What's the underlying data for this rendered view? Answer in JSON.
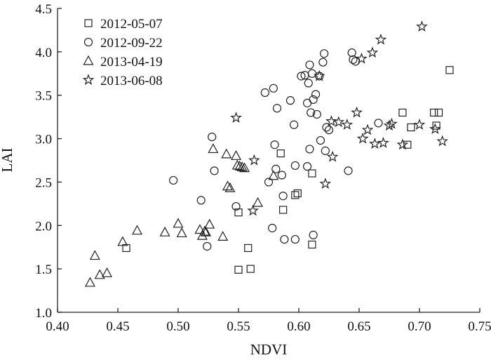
{
  "chart_data": {
    "type": "scatter",
    "xlabel": "NDVI",
    "ylabel": "LAI",
    "xlim": [
      0.4,
      0.75
    ],
    "ylim": [
      1.0,
      4.5
    ],
    "xticks": [
      "0.40",
      "0.45",
      "0.50",
      "0.55",
      "0.60",
      "0.65",
      "0.70",
      "0.75"
    ],
    "yticks": [
      "1.0",
      "1.5",
      "2.0",
      "2.5",
      "3.0",
      "3.5",
      "4.0",
      "4.5"
    ],
    "legend_position": "top-left",
    "grid": false,
    "series": [
      {
        "name": "2012-05-07",
        "marker": "square",
        "points": [
          [
            0.457,
            1.74
          ],
          [
            0.55,
            2.15
          ],
          [
            0.55,
            1.49
          ],
          [
            0.558,
            1.74
          ],
          [
            0.56,
            1.5
          ],
          [
            0.585,
            2.83
          ],
          [
            0.587,
            2.18
          ],
          [
            0.597,
            2.35
          ],
          [
            0.599,
            2.37
          ],
          [
            0.611,
            2.6
          ],
          [
            0.611,
            1.78
          ],
          [
            0.686,
            3.3
          ],
          [
            0.69,
            2.93
          ],
          [
            0.693,
            3.13
          ],
          [
            0.712,
            3.3
          ],
          [
            0.714,
            3.15
          ],
          [
            0.716,
            3.3
          ],
          [
            0.725,
            3.79
          ]
        ]
      },
      {
        "name": "2012-09-22",
        "marker": "circle",
        "points": [
          [
            0.496,
            2.52
          ],
          [
            0.519,
            2.29
          ],
          [
            0.524,
            1.76
          ],
          [
            0.528,
            3.02
          ],
          [
            0.53,
            2.63
          ],
          [
            0.548,
            2.22
          ],
          [
            0.572,
            3.53
          ],
          [
            0.575,
            2.5
          ],
          [
            0.578,
            1.97
          ],
          [
            0.579,
            3.58
          ],
          [
            0.58,
            2.93
          ],
          [
            0.581,
            2.65
          ],
          [
            0.582,
            3.35
          ],
          [
            0.586,
            2.58
          ],
          [
            0.587,
            2.34
          ],
          [
            0.588,
            1.84
          ],
          [
            0.593,
            3.44
          ],
          [
            0.596,
            3.16
          ],
          [
            0.597,
            2.69
          ],
          [
            0.597,
            1.84
          ],
          [
            0.602,
            3.72
          ],
          [
            0.605,
            3.73
          ],
          [
            0.607,
            2.68
          ],
          [
            0.607,
            3.41
          ],
          [
            0.608,
            3.64
          ],
          [
            0.609,
            2.88
          ],
          [
            0.609,
            3.85
          ],
          [
            0.61,
            3.3
          ],
          [
            0.611,
            3.75
          ],
          [
            0.612,
            3.45
          ],
          [
            0.612,
            1.89
          ],
          [
            0.614,
            3.51
          ],
          [
            0.615,
            3.28
          ],
          [
            0.617,
            3.72
          ],
          [
            0.618,
            2.98
          ],
          [
            0.62,
            3.88
          ],
          [
            0.621,
            3.98
          ],
          [
            0.622,
            2.86
          ],
          [
            0.623,
            3.13
          ],
          [
            0.625,
            3.1
          ],
          [
            0.641,
            2.63
          ],
          [
            0.644,
            3.99
          ],
          [
            0.645,
            3.91
          ],
          [
            0.647,
            3.89
          ],
          [
            0.666,
            3.18
          ]
        ]
      },
      {
        "name": "2013-04-19",
        "marker": "triangle",
        "points": [
          [
            0.427,
            1.34
          ],
          [
            0.431,
            1.65
          ],
          [
            0.435,
            1.43
          ],
          [
            0.441,
            1.45
          ],
          [
            0.454,
            1.81
          ],
          [
            0.466,
            1.94
          ],
          [
            0.489,
            1.92
          ],
          [
            0.5,
            2.02
          ],
          [
            0.503,
            1.91
          ],
          [
            0.518,
            1.95
          ],
          [
            0.52,
            1.88
          ],
          [
            0.522,
            1.93
          ],
          [
            0.523,
            1.92
          ],
          [
            0.526,
            2.01
          ],
          [
            0.529,
            2.88
          ],
          [
            0.537,
            1.87
          ],
          [
            0.54,
            2.82
          ],
          [
            0.541,
            2.45
          ],
          [
            0.543,
            2.43
          ],
          [
            0.548,
            2.8
          ],
          [
            0.549,
            2.69
          ],
          [
            0.551,
            2.68
          ],
          [
            0.553,
            2.67
          ],
          [
            0.555,
            2.66
          ],
          [
            0.566,
            2.26
          ],
          [
            0.579,
            2.57
          ]
        ]
      },
      {
        "name": "2013-06-08",
        "marker": "star",
        "points": [
          [
            0.548,
            3.24
          ],
          [
            0.562,
            2.17
          ],
          [
            0.563,
            2.75
          ],
          [
            0.617,
            3.72
          ],
          [
            0.622,
            2.48
          ],
          [
            0.627,
            3.2
          ],
          [
            0.628,
            2.79
          ],
          [
            0.633,
            3.19
          ],
          [
            0.64,
            3.16
          ],
          [
            0.648,
            3.3
          ],
          [
            0.652,
            3.92
          ],
          [
            0.653,
            3.0
          ],
          [
            0.657,
            3.1
          ],
          [
            0.661,
            3.99
          ],
          [
            0.663,
            2.94
          ],
          [
            0.668,
            4.14
          ],
          [
            0.67,
            2.95
          ],
          [
            0.675,
            3.15
          ],
          [
            0.677,
            3.17
          ],
          [
            0.686,
            2.93
          ],
          [
            0.7,
            3.16
          ],
          [
            0.702,
            4.29
          ],
          [
            0.713,
            3.11
          ],
          [
            0.719,
            2.97
          ]
        ]
      }
    ]
  }
}
